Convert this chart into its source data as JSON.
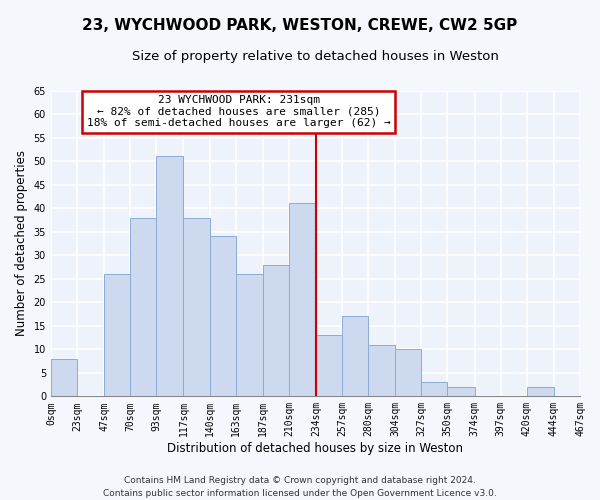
{
  "title": "23, WYCHWOOD PARK, WESTON, CREWE, CW2 5GP",
  "subtitle": "Size of property relative to detached houses in Weston",
  "xlabel": "Distribution of detached houses by size in Weston",
  "ylabel": "Number of detached properties",
  "bar_color": "#ccd9ee",
  "bar_edge_color": "#8aadd4",
  "bin_edges": [
    0,
    23,
    47,
    70,
    93,
    117,
    140,
    163,
    187,
    210,
    234,
    257,
    280,
    304,
    327,
    350,
    374,
    397,
    420,
    444,
    467
  ],
  "bar_heights": [
    8,
    0,
    26,
    38,
    51,
    38,
    34,
    26,
    28,
    41,
    13,
    17,
    11,
    10,
    3,
    2,
    0,
    0,
    2,
    0
  ],
  "tick_labels": [
    "0sqm",
    "23sqm",
    "47sqm",
    "70sqm",
    "93sqm",
    "117sqm",
    "140sqm",
    "163sqm",
    "187sqm",
    "210sqm",
    "234sqm",
    "257sqm",
    "280sqm",
    "304sqm",
    "327sqm",
    "350sqm",
    "374sqm",
    "397sqm",
    "420sqm",
    "444sqm",
    "467sqm"
  ],
  "ylim": [
    0,
    65
  ],
  "yticks": [
    0,
    5,
    10,
    15,
    20,
    25,
    30,
    35,
    40,
    45,
    50,
    55,
    60,
    65
  ],
  "vline_x": 234,
  "vline_color": "#cc0000",
  "annotation_title": "23 WYCHWOOD PARK: 231sqm",
  "annotation_line1": "← 82% of detached houses are smaller (285)",
  "annotation_line2": "18% of semi-detached houses are larger (62) →",
  "footer_line1": "Contains HM Land Registry data © Crown copyright and database right 2024.",
  "footer_line2": "Contains public sector information licensed under the Open Government Licence v3.0.",
  "background_color": "#f4f7fc",
  "plot_background": "#eef2fa",
  "grid_color": "#ffffff",
  "title_fontsize": 11,
  "subtitle_fontsize": 9.5,
  "axis_label_fontsize": 8.5,
  "tick_fontsize": 7,
  "annotation_fontsize": 8,
  "footer_fontsize": 6.5
}
